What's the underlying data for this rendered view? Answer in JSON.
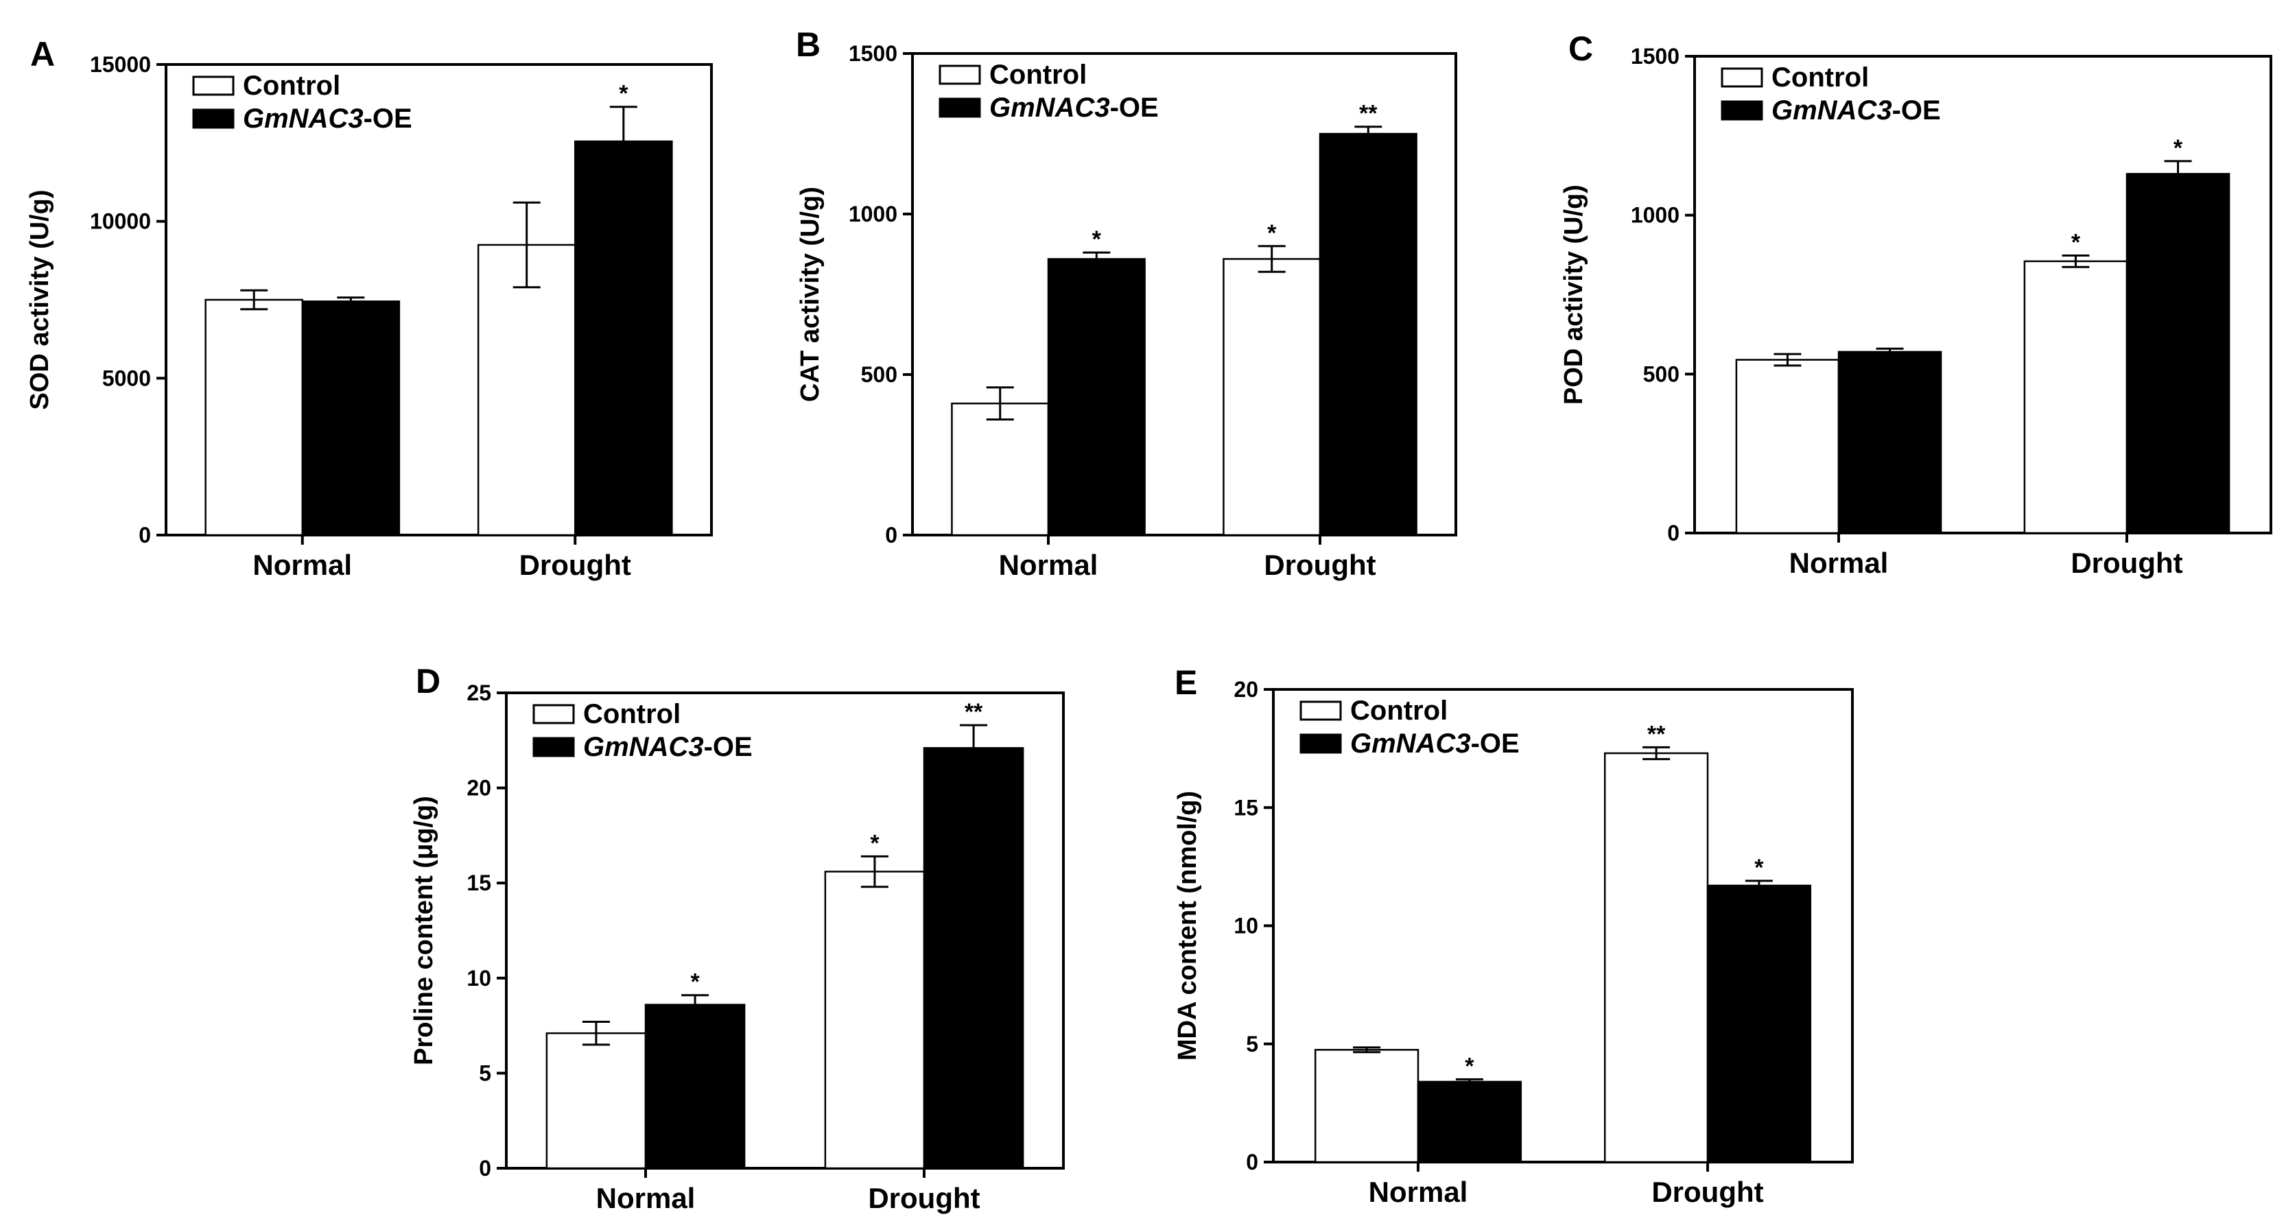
{
  "colors": {
    "control": "#ffffff",
    "treatment": "#000000",
    "stroke": "#000000"
  },
  "chart_data": [
    {
      "panel": "A",
      "type": "bar",
      "ylabel": "SOD activity (U/g)",
      "ylim": [
        0,
        15000
      ],
      "yticks": [
        0,
        5000,
        10000,
        15000
      ],
      "categories": [
        "Normal",
        "Drought"
      ],
      "legend": {
        "control": "Control",
        "treatment_italic": "GmNAC3",
        "treatment_suffix": "-OE",
        "position": "top-left"
      },
      "series": [
        {
          "name": "Control",
          "values": [
            7500,
            9250
          ],
          "errors": [
            300,
            1350
          ],
          "sig": [
            "",
            ""
          ]
        },
        {
          "name": "GmNAC3-OE",
          "values": [
            7450,
            12550
          ],
          "errors": [
            120,
            1100
          ],
          "sig": [
            "",
            "*"
          ]
        }
      ]
    },
    {
      "panel": "B",
      "type": "bar",
      "ylabel": "CAT activity (U/g)",
      "ylim": [
        0,
        1500
      ],
      "yticks": [
        0,
        500,
        1000,
        1500
      ],
      "categories": [
        "Normal",
        "Drought"
      ],
      "legend": {
        "control": "Control",
        "treatment_italic": "GmNAC3",
        "treatment_suffix": "-OE",
        "position": "top-left"
      },
      "series": [
        {
          "name": "Control",
          "values": [
            410,
            860
          ],
          "errors": [
            50,
            40
          ],
          "sig": [
            "",
            "*"
          ]
        },
        {
          "name": "GmNAC3-OE",
          "values": [
            860,
            1250
          ],
          "errors": [
            20,
            22
          ],
          "sig": [
            "*",
            "**"
          ]
        }
      ]
    },
    {
      "panel": "C",
      "type": "bar",
      "ylabel": "POD activity (U/g)",
      "ylim": [
        0,
        1500
      ],
      "yticks": [
        0,
        500,
        1000,
        1500
      ],
      "categories": [
        "Normal",
        "Drought"
      ],
      "legend": {
        "control": "Control",
        "treatment_italic": "GmNAC3",
        "treatment_suffix": "-OE",
        "position": "top-left"
      },
      "series": [
        {
          "name": "Control",
          "values": [
            545,
            855
          ],
          "errors": [
            18,
            18
          ],
          "sig": [
            "",
            "*"
          ]
        },
        {
          "name": "GmNAC3-OE",
          "values": [
            570,
            1130
          ],
          "errors": [
            10,
            40
          ],
          "sig": [
            "",
            "*"
          ]
        }
      ]
    },
    {
      "panel": "D",
      "type": "bar",
      "ylabel": "Proline content (μg/g)",
      "ylim": [
        0,
        25
      ],
      "yticks": [
        0,
        5,
        10,
        15,
        20,
        25
      ],
      "categories": [
        "Normal",
        "Drought"
      ],
      "legend": {
        "control": "Control",
        "treatment_italic": "GmNAC3",
        "treatment_suffix": "-OE",
        "position": "top-left"
      },
      "series": [
        {
          "name": "Control",
          "values": [
            7.1,
            15.6
          ],
          "errors": [
            0.6,
            0.8
          ],
          "sig": [
            "",
            "*"
          ]
        },
        {
          "name": "GmNAC3-OE",
          "values": [
            8.6,
            22.1
          ],
          "errors": [
            0.5,
            1.2
          ],
          "sig": [
            "*",
            "**"
          ]
        }
      ]
    },
    {
      "panel": "E",
      "type": "bar",
      "ylabel": "MDA content (nmol/g)",
      "ylim": [
        0,
        20
      ],
      "yticks": [
        0,
        5,
        10,
        15,
        20
      ],
      "categories": [
        "Normal",
        "Drought"
      ],
      "legend": {
        "control": "Control",
        "treatment_italic": "GmNAC3",
        "treatment_suffix": "-OE",
        "position": "top-left"
      },
      "series": [
        {
          "name": "Control",
          "values": [
            4.75,
            17.3
          ],
          "errors": [
            0.1,
            0.25
          ],
          "sig": [
            "",
            "**"
          ]
        },
        {
          "name": "GmNAC3-OE",
          "values": [
            3.4,
            11.7
          ],
          "errors": [
            0.1,
            0.2
          ],
          "sig": [
            "*",
            "*"
          ]
        }
      ]
    }
  ]
}
